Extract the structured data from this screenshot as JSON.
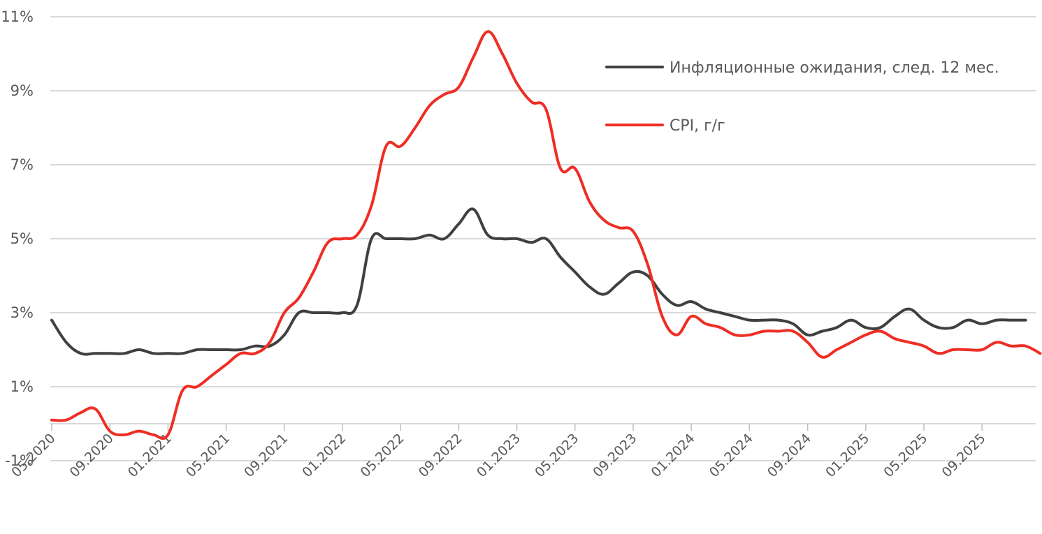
{
  "chart_data": {
    "type": "line",
    "title": "",
    "xlabel": "",
    "ylabel": "",
    "ylim": [
      -1,
      11
    ],
    "y_ticks": [
      "-1%",
      "1%",
      "3%",
      "5%",
      "7%",
      "9%",
      "11%"
    ],
    "x_ticks": [
      "05.2020",
      "09.2020",
      "01.2021",
      "05.2021",
      "09.2021",
      "01.2022",
      "05.2022",
      "09.2022",
      "01.2023",
      "05.2023",
      "09.2023",
      "01.2024",
      "05.2024",
      "09.2024",
      "01.2025",
      "05.2025",
      "09.2025"
    ],
    "legend_position": "top-right",
    "grid": "horizontal",
    "series": [
      {
        "name": "Инфляционные ожидания, след. 12 мес.",
        "color": "#404040",
        "points": [
          [
            "2020-05",
            2.8
          ],
          [
            "2020-06",
            2.2
          ],
          [
            "2020-07",
            1.9
          ],
          [
            "2020-08",
            1.9
          ],
          [
            "2020-09",
            1.9
          ],
          [
            "2020-10",
            1.9
          ],
          [
            "2020-11",
            2.0
          ],
          [
            "2020-12",
            1.9
          ],
          [
            "2021-01",
            1.9
          ],
          [
            "2021-02",
            1.9
          ],
          [
            "2021-03",
            2.0
          ],
          [
            "2021-04",
            2.0
          ],
          [
            "2021-05",
            2.0
          ],
          [
            "2021-06",
            2.0
          ],
          [
            "2021-07",
            2.1
          ],
          [
            "2021-08",
            2.1
          ],
          [
            "2021-09",
            2.4
          ],
          [
            "2021-10",
            3.0
          ],
          [
            "2021-11",
            3.0
          ],
          [
            "2021-12",
            3.0
          ],
          [
            "2022-01",
            3.0
          ],
          [
            "2022-02",
            3.2
          ],
          [
            "2022-03",
            5.0
          ],
          [
            "2022-04",
            5.0
          ],
          [
            "2022-05",
            5.0
          ],
          [
            "2022-06",
            5.0
          ],
          [
            "2022-07",
            5.1
          ],
          [
            "2022-08",
            5.0
          ],
          [
            "2022-09",
            5.4
          ],
          [
            "2022-10",
            5.8
          ],
          [
            "2022-11",
            5.1
          ],
          [
            "2022-12",
            5.0
          ],
          [
            "2023-01",
            5.0
          ],
          [
            "2023-02",
            4.9
          ],
          [
            "2023-03",
            5.0
          ],
          [
            "2023-04",
            4.5
          ],
          [
            "2023-05",
            4.1
          ],
          [
            "2023-06",
            3.7
          ],
          [
            "2023-07",
            3.5
          ],
          [
            "2023-08",
            3.8
          ],
          [
            "2023-09",
            4.1
          ],
          [
            "2023-10",
            4.0
          ],
          [
            "2023-11",
            3.5
          ],
          [
            "2023-12",
            3.2
          ],
          [
            "2024-01",
            3.3
          ],
          [
            "2024-02",
            3.1
          ],
          [
            "2024-03",
            3.0
          ],
          [
            "2024-04",
            2.9
          ],
          [
            "2024-05",
            2.8
          ],
          [
            "2024-06",
            2.8
          ],
          [
            "2024-07",
            2.8
          ],
          [
            "2024-08",
            2.7
          ],
          [
            "2024-09",
            2.4
          ],
          [
            "2024-10",
            2.5
          ],
          [
            "2024-11",
            2.6
          ],
          [
            "2024-12",
            2.8
          ],
          [
            "2025-01",
            2.6
          ],
          [
            "2025-02",
            2.6
          ],
          [
            "2025-03",
            2.9
          ],
          [
            "2025-04",
            3.1
          ],
          [
            "2025-05",
            2.8
          ],
          [
            "2025-06",
            2.6
          ],
          [
            "2025-07",
            2.6
          ],
          [
            "2025-08",
            2.8
          ],
          [
            "2025-09",
            2.7
          ],
          [
            "2025-10",
            2.8
          ],
          [
            "2025-11",
            2.8
          ],
          [
            "2025-12",
            2.8
          ]
        ]
      },
      {
        "name": "CPI, г/г",
        "color": "#ee2e24",
        "points": [
          [
            "2020-05",
            0.1
          ],
          [
            "2020-06",
            0.1
          ],
          [
            "2020-07",
            0.3
          ],
          [
            "2020-08",
            0.4
          ],
          [
            "2020-09",
            -0.2
          ],
          [
            "2020-10",
            -0.3
          ],
          [
            "2020-11",
            -0.2
          ],
          [
            "2020-12",
            -0.3
          ],
          [
            "2021-01",
            -0.3
          ],
          [
            "2021-02",
            0.9
          ],
          [
            "2021-03",
            1.0
          ],
          [
            "2021-04",
            1.3
          ],
          [
            "2021-05",
            1.6
          ],
          [
            "2021-06",
            1.9
          ],
          [
            "2021-07",
            1.9
          ],
          [
            "2021-08",
            2.2
          ],
          [
            "2021-09",
            3.0
          ],
          [
            "2021-10",
            3.4
          ],
          [
            "2021-11",
            4.1
          ],
          [
            "2021-12",
            4.9
          ],
          [
            "2022-01",
            5.0
          ],
          [
            "2022-02",
            5.1
          ],
          [
            "2022-03",
            5.9
          ],
          [
            "2022-04",
            7.5
          ],
          [
            "2022-05",
            7.5
          ],
          [
            "2022-06",
            8.0
          ],
          [
            "2022-07",
            8.6
          ],
          [
            "2022-08",
            8.9
          ],
          [
            "2022-09",
            9.1
          ],
          [
            "2022-10",
            9.9
          ],
          [
            "2022-11",
            10.6
          ],
          [
            "2022-12",
            10.0
          ],
          [
            "2023-01",
            9.2
          ],
          [
            "2023-02",
            8.7
          ],
          [
            "2023-03",
            8.5
          ],
          [
            "2023-04",
            6.9
          ],
          [
            "2023-05",
            6.9
          ],
          [
            "2023-06",
            6.0
          ],
          [
            "2023-07",
            5.5
          ],
          [
            "2023-08",
            5.3
          ],
          [
            "2023-09",
            5.2
          ],
          [
            "2023-10",
            4.3
          ],
          [
            "2023-11",
            2.9
          ],
          [
            "2023-12",
            2.4
          ],
          [
            "2024-01",
            2.9
          ],
          [
            "2024-02",
            2.7
          ],
          [
            "2024-03",
            2.6
          ],
          [
            "2024-04",
            2.4
          ],
          [
            "2024-05",
            2.4
          ],
          [
            "2024-06",
            2.5
          ],
          [
            "2024-07",
            2.5
          ],
          [
            "2024-08",
            2.5
          ],
          [
            "2024-09",
            2.2
          ],
          [
            "2024-10",
            1.8
          ],
          [
            "2024-11",
            2.0
          ],
          [
            "2024-12",
            2.2
          ],
          [
            "2025-01",
            2.4
          ],
          [
            "2025-02",
            2.5
          ],
          [
            "2025-03",
            2.3
          ],
          [
            "2025-04",
            2.2
          ],
          [
            "2025-05",
            2.1
          ],
          [
            "2025-06",
            1.9
          ],
          [
            "2025-07",
            2.0
          ],
          [
            "2025-08",
            2.0
          ],
          [
            "2025-09",
            2.0
          ],
          [
            "2025-10",
            2.2
          ],
          [
            "2025-11",
            2.1
          ],
          [
            "2025-12",
            2.1
          ],
          [
            "2026-01",
            1.9
          ]
        ]
      }
    ]
  }
}
